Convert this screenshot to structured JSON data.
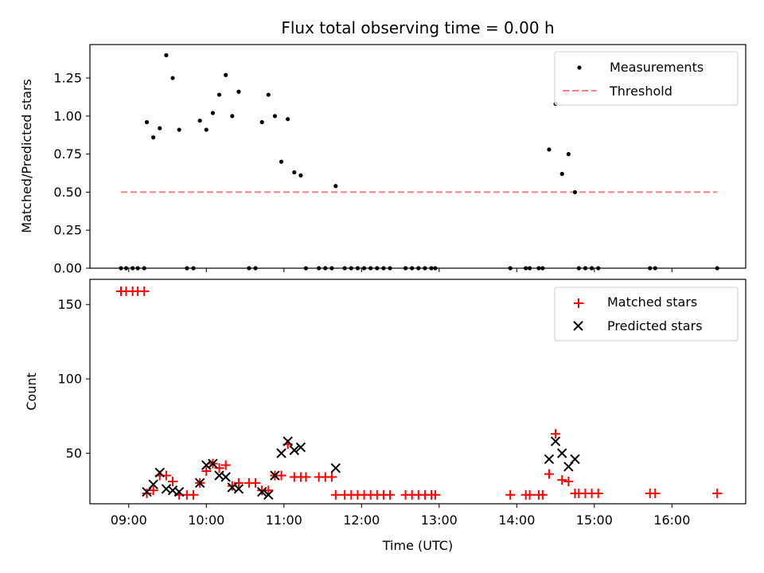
{
  "chart_data": [
    {
      "type": "scatter",
      "title": "Flux total observing time = 0.00 h",
      "xlabel": "",
      "ylabel": "Matched/Predicted stars",
      "xlim": [
        "08:30",
        "16:57"
      ],
      "ylim": [
        0,
        1.47
      ],
      "yticks": [
        "0.00",
        "0.25",
        "0.50",
        "0.75",
        "1.00",
        "1.25"
      ],
      "legend_position": "top-right",
      "series": [
        {
          "name": "Measurements",
          "marker": "dot",
          "color": "#000000",
          "points": [
            [
              "08:54",
              0
            ],
            [
              "08:58",
              0
            ],
            [
              "09:03",
              0
            ],
            [
              "09:07",
              0
            ],
            [
              "09:12",
              0
            ],
            [
              "09:14",
              0.96
            ],
            [
              "09:19",
              0.86
            ],
            [
              "09:24",
              0.92
            ],
            [
              "09:29",
              1.4
            ],
            [
              "09:34",
              1.25
            ],
            [
              "09:39",
              0.91
            ],
            [
              "09:45",
              0
            ],
            [
              "09:50",
              0
            ],
            [
              "09:55",
              0.97
            ],
            [
              "10:00",
              0.91
            ],
            [
              "10:05",
              1.02
            ],
            [
              "10:10",
              1.14
            ],
            [
              "10:15",
              1.27
            ],
            [
              "10:20",
              1.0
            ],
            [
              "10:25",
              1.16
            ],
            [
              "10:33",
              0
            ],
            [
              "10:38",
              0
            ],
            [
              "10:43",
              0.96
            ],
            [
              "10:48",
              1.14
            ],
            [
              "10:53",
              1.0
            ],
            [
              "10:58",
              0.7
            ],
            [
              "11:03",
              0.98
            ],
            [
              "11:08",
              0.63
            ],
            [
              "11:13",
              0.61
            ],
            [
              "11:17",
              0
            ],
            [
              "11:27",
              0
            ],
            [
              "11:32",
              0
            ],
            [
              "11:37",
              0
            ],
            [
              "11:40",
              0.54
            ],
            [
              "11:47",
              0
            ],
            [
              "11:52",
              0
            ],
            [
              "11:57",
              0
            ],
            [
              "12:02",
              0
            ],
            [
              "12:07",
              0
            ],
            [
              "12:12",
              0
            ],
            [
              "12:17",
              0
            ],
            [
              "12:22",
              0
            ],
            [
              "12:34",
              0
            ],
            [
              "12:39",
              0
            ],
            [
              "12:44",
              0
            ],
            [
              "12:49",
              0
            ],
            [
              "12:54",
              0
            ],
            [
              "12:57",
              0
            ],
            [
              "13:55",
              0
            ],
            [
              "14:07",
              0
            ],
            [
              "14:10",
              0
            ],
            [
              "14:17",
              0
            ],
            [
              "14:20",
              0
            ],
            [
              "14:25",
              0.78
            ],
            [
              "14:30",
              1.08
            ],
            [
              "14:35",
              0.62
            ],
            [
              "14:40",
              0.75
            ],
            [
              "14:45",
              0.5
            ],
            [
              "14:48",
              0
            ],
            [
              "14:53",
              0
            ],
            [
              "14:58",
              0
            ],
            [
              "15:03",
              0
            ],
            [
              "15:43",
              0
            ],
            [
              "15:47",
              0
            ],
            [
              "16:35",
              0
            ]
          ]
        },
        {
          "name": "Threshold",
          "style": "dashed",
          "color": "#ff7f7f",
          "points": [
            [
              "08:54",
              0.5
            ],
            [
              "16:35",
              0.5
            ]
          ]
        }
      ]
    },
    {
      "type": "scatter",
      "title": "",
      "xlabel": "Time (UTC)",
      "ylabel": "Count",
      "xlim": [
        "08:30",
        "16:57"
      ],
      "ylim": [
        16,
        167
      ],
      "yticks": [
        "50",
        "100",
        "150"
      ],
      "xticks": [
        "09:00",
        "10:00",
        "11:00",
        "12:00",
        "13:00",
        "14:00",
        "15:00",
        "16:00"
      ],
      "legend_position": "top-right",
      "series": [
        {
          "name": "Matched stars",
          "marker": "plus",
          "color": "#ff0000",
          "points": [
            [
              "08:54",
              159
            ],
            [
              "08:58",
              159
            ],
            [
              "09:03",
              159
            ],
            [
              "09:07",
              159
            ],
            [
              "09:12",
              159
            ],
            [
              "09:14",
              23
            ],
            [
              "09:19",
              25
            ],
            [
              "09:24",
              35
            ],
            [
              "09:29",
              35
            ],
            [
              "09:34",
              31
            ],
            [
              "09:39",
              22
            ],
            [
              "09:45",
              22
            ],
            [
              "09:50",
              22
            ],
            [
              "09:55",
              30
            ],
            [
              "10:00",
              38
            ],
            [
              "10:05",
              43
            ],
            [
              "10:10",
              40
            ],
            [
              "10:15",
              42
            ],
            [
              "10:20",
              28
            ],
            [
              "10:25",
              30
            ],
            [
              "10:33",
              30
            ],
            [
              "10:38",
              30
            ],
            [
              "10:43",
              25
            ],
            [
              "10:48",
              25
            ],
            [
              "10:53",
              35
            ],
            [
              "10:58",
              35
            ],
            [
              "11:03",
              56
            ],
            [
              "11:08",
              34
            ],
            [
              "11:13",
              34
            ],
            [
              "11:17",
              34
            ],
            [
              "11:27",
              34
            ],
            [
              "11:32",
              34
            ],
            [
              "11:37",
              34
            ],
            [
              "11:40",
              22
            ],
            [
              "11:47",
              22
            ],
            [
              "11:52",
              22
            ],
            [
              "11:57",
              22
            ],
            [
              "12:02",
              22
            ],
            [
              "12:07",
              22
            ],
            [
              "12:12",
              22
            ],
            [
              "12:17",
              22
            ],
            [
              "12:22",
              22
            ],
            [
              "12:34",
              22
            ],
            [
              "12:39",
              22
            ],
            [
              "12:44",
              22
            ],
            [
              "12:49",
              22
            ],
            [
              "12:54",
              22
            ],
            [
              "12:57",
              22
            ],
            [
              "13:55",
              22
            ],
            [
              "14:07",
              22
            ],
            [
              "14:10",
              22
            ],
            [
              "14:17",
              22
            ],
            [
              "14:20",
              22
            ],
            [
              "14:25",
              36
            ],
            [
              "14:30",
              63
            ],
            [
              "14:35",
              32
            ],
            [
              "14:40",
              31
            ],
            [
              "14:45",
              23
            ],
            [
              "14:48",
              23
            ],
            [
              "14:53",
              23
            ],
            [
              "14:58",
              23
            ],
            [
              "15:03",
              23
            ],
            [
              "15:43",
              23
            ],
            [
              "15:47",
              23
            ],
            [
              "16:35",
              23
            ]
          ]
        },
        {
          "name": "Predicted stars",
          "marker": "x",
          "color": "#000000",
          "points": [
            [
              "09:14",
              24
            ],
            [
              "09:19",
              29
            ],
            [
              "09:24",
              37
            ],
            [
              "09:29",
              26
            ],
            [
              "09:34",
              25
            ],
            [
              "09:39",
              24
            ],
            [
              "09:55",
              30
            ],
            [
              "10:00",
              42
            ],
            [
              "10:05",
              43
            ],
            [
              "10:10",
              35
            ],
            [
              "10:15",
              34
            ],
            [
              "10:20",
              27
            ],
            [
              "10:25",
              26
            ],
            [
              "10:43",
              24
            ],
            [
              "10:48",
              22
            ],
            [
              "10:53",
              35
            ],
            [
              "10:58",
              50
            ],
            [
              "11:03",
              58
            ],
            [
              "11:08",
              52
            ],
            [
              "11:13",
              54
            ],
            [
              "11:40",
              40
            ],
            [
              "14:25",
              46
            ],
            [
              "14:30",
              58
            ],
            [
              "14:35",
              50
            ],
            [
              "14:40",
              41
            ],
            [
              "14:45",
              46
            ]
          ]
        }
      ]
    }
  ]
}
